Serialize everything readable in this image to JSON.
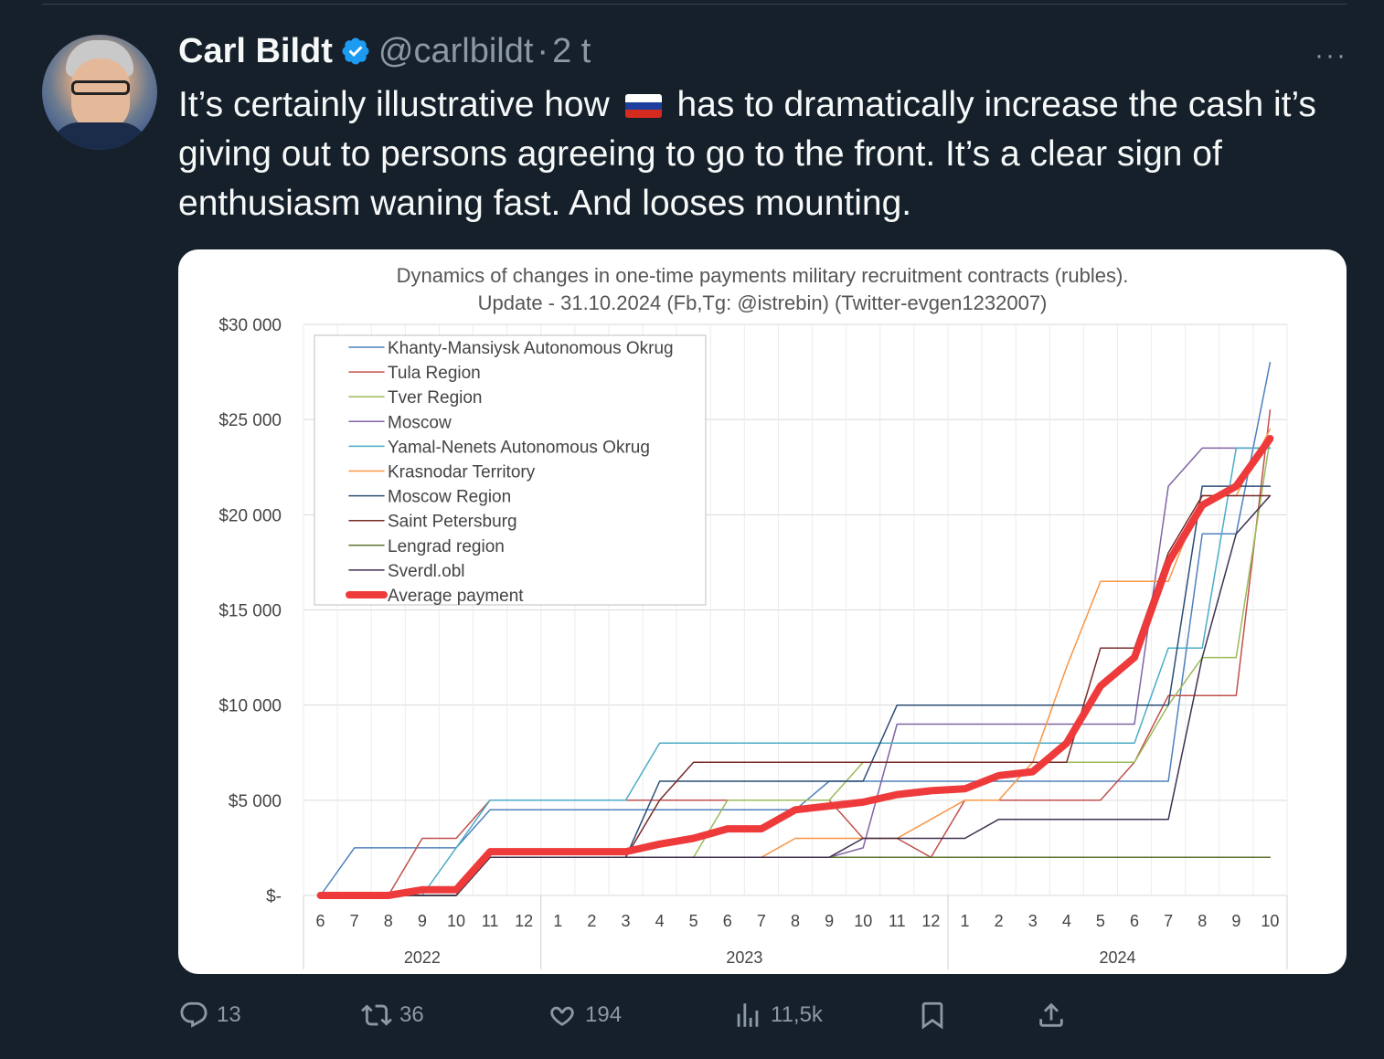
{
  "tweet": {
    "display_name": "Carl Bildt",
    "handle": "@carlbildt",
    "separator": "·",
    "time": "2 t",
    "text_before_flag": "It’s certainly illustrative how",
    "flag_icon": "russia-flag",
    "text_after_flag": "has to dramatically increase the cash it’s giving out to persons agreeing to go to the front. It’s a clear sign of enthusiasm waning fast. And looses mounting.",
    "more_label": "···"
  },
  "actions": {
    "replies": "13",
    "reposts": "36",
    "likes": "194",
    "views": "11,5k"
  },
  "colors": {
    "background": "#15202b",
    "verified": "#1d9bf0",
    "muted": "#8b98a5",
    "average": "#ee3a3a"
  },
  "chart_data": {
    "type": "line",
    "title": "Dynamics of changes in one-time payments military recruitment contracts (rubles).",
    "subtitle": "Update - 31.10.2024 (Fb,Tg: @istrebin) (Twitter-evgen1232007)",
    "months": [
      "6",
      "7",
      "8",
      "9",
      "10",
      "11",
      "12",
      "1",
      "2",
      "3",
      "4",
      "5",
      "6",
      "7",
      "8",
      "9",
      "10",
      "11",
      "12",
      "1",
      "2",
      "3",
      "4",
      "5",
      "6",
      "7",
      "8",
      "9",
      "10"
    ],
    "years": [
      {
        "label": "2022",
        "start": 0,
        "end": 6
      },
      {
        "label": "2023",
        "start": 7,
        "end": 18
      },
      {
        "label": "2024",
        "start": 19,
        "end": 28
      }
    ],
    "y_ticks": [
      {
        "value": 0,
        "label": "$-"
      },
      {
        "value": 5000,
        "label": "$5 000"
      },
      {
        "value": 10000,
        "label": "$10 000"
      },
      {
        "value": 15000,
        "label": "$15 000"
      },
      {
        "value": 20000,
        "label": "$20 000"
      },
      {
        "value": 25000,
        "label": "$25 000"
      },
      {
        "value": 30000,
        "label": "$30 000"
      }
    ],
    "ylim": [
      0,
      30000
    ],
    "grid": true,
    "legend_position": "top-left",
    "series": [
      {
        "name": "Khanty-Mansiysk Autonomous Okrug",
        "color": "#4f81bd",
        "width": 1.5,
        "values": [
          0,
          2500,
          2500,
          2500,
          2500,
          4500,
          4500,
          4500,
          4500,
          4500,
          4500,
          4500,
          4500,
          4500,
          4500,
          6000,
          6000,
          6000,
          6000,
          6000,
          6000,
          6000,
          6000,
          6000,
          6000,
          6000,
          19000,
          19000,
          28000
        ]
      },
      {
        "name": "Tula Region",
        "color": "#c0504d",
        "width": 1.5,
        "values": [
          0,
          0,
          0,
          3000,
          3000,
          5000,
          5000,
          5000,
          5000,
          5000,
          5000,
          5000,
          5000,
          5000,
          5000,
          5000,
          3000,
          3000,
          2000,
          5000,
          5000,
          5000,
          5000,
          5000,
          7000,
          10500,
          10500,
          10500,
          25500
        ]
      },
      {
        "name": "Tver Region",
        "color": "#9bbb59",
        "width": 1.5,
        "values": [
          0,
          0,
          0,
          0,
          0,
          2000,
          2000,
          2000,
          2000,
          2000,
          2000,
          2000,
          5000,
          5000,
          5000,
          5000,
          7000,
          7000,
          7000,
          7000,
          7000,
          7000,
          7000,
          7000,
          7000,
          10000,
          12500,
          12500,
          24000
        ]
      },
      {
        "name": "Moscow",
        "color": "#8064a2",
        "width": 1.5,
        "values": [
          0,
          0,
          0,
          0,
          0,
          2000,
          2000,
          2000,
          2000,
          2000,
          2000,
          2000,
          2000,
          2000,
          2000,
          2000,
          2500,
          9000,
          9000,
          9000,
          9000,
          9000,
          9000,
          9000,
          9000,
          21500,
          23500,
          23500,
          23500
        ]
      },
      {
        "name": "Yamal-Nenets Autonomous Okrug",
        "color": "#4bacc6",
        "width": 1.5,
        "values": [
          0,
          0,
          0,
          0,
          2500,
          5000,
          5000,
          5000,
          5000,
          5000,
          8000,
          8000,
          8000,
          8000,
          8000,
          8000,
          8000,
          8000,
          8000,
          8000,
          8000,
          8000,
          8000,
          8000,
          8000,
          13000,
          13000,
          23500,
          23500
        ]
      },
      {
        "name": "Krasnodar Territory",
        "color": "#f79646",
        "width": 1.5,
        "values": [
          0,
          0,
          0,
          0,
          0,
          2000,
          2000,
          2000,
          2000,
          2000,
          2000,
          2000,
          2000,
          2000,
          3000,
          3000,
          3000,
          3000,
          4000,
          5000,
          5000,
          7000,
          12000,
          16500,
          16500,
          16500,
          21000,
          21000,
          24500
        ]
      },
      {
        "name": "Moscow Region",
        "color": "#2c4d75",
        "width": 1.5,
        "values": [
          0,
          0,
          0,
          0,
          0,
          2000,
          2000,
          2000,
          2000,
          2000,
          6000,
          6000,
          6000,
          6000,
          6000,
          6000,
          6000,
          10000,
          10000,
          10000,
          10000,
          10000,
          10000,
          10000,
          10000,
          10000,
          21500,
          21500,
          21500
        ]
      },
      {
        "name": "Saint Petersburg",
        "color": "#772c2a",
        "width": 1.5,
        "values": [
          0,
          0,
          0,
          0,
          0,
          2000,
          2000,
          2000,
          2000,
          2000,
          5000,
          7000,
          7000,
          7000,
          7000,
          7000,
          7000,
          7000,
          7000,
          7000,
          7000,
          7000,
          7000,
          13000,
          13000,
          18000,
          21000,
          21000,
          21000
        ]
      },
      {
        "name": "Lengrad region",
        "color": "#5f7530",
        "width": 1.5,
        "values": [
          0,
          0,
          0,
          0,
          0,
          2000,
          2000,
          2000,
          2000,
          2000,
          2000,
          2000,
          2000,
          2000,
          2000,
          2000,
          2000,
          2000,
          2000,
          2000,
          2000,
          2000,
          2000,
          2000,
          2000,
          2000,
          2000,
          2000,
          2000
        ]
      },
      {
        "name": "Sverdl.obl",
        "color": "#3f3151",
        "width": 1.5,
        "values": [
          0,
          0,
          0,
          0,
          0,
          2000,
          2000,
          2000,
          2000,
          2000,
          2000,
          2000,
          2000,
          2000,
          2000,
          2000,
          3000,
          3000,
          3000,
          3000,
          4000,
          4000,
          4000,
          4000,
          4000,
          4000,
          12500,
          19000,
          21000
        ]
      },
      {
        "name": "Average payment",
        "color": "#ee3a3a",
        "width": 8,
        "values": [
          0,
          0,
          0,
          300,
          300,
          2300,
          2300,
          2300,
          2300,
          2300,
          2700,
          3000,
          3500,
          3500,
          4500,
          4700,
          4900,
          5300,
          5500,
          5600,
          6300,
          6500,
          8000,
          11000,
          12500,
          17500,
          20500,
          21500,
          24000
        ]
      }
    ]
  }
}
